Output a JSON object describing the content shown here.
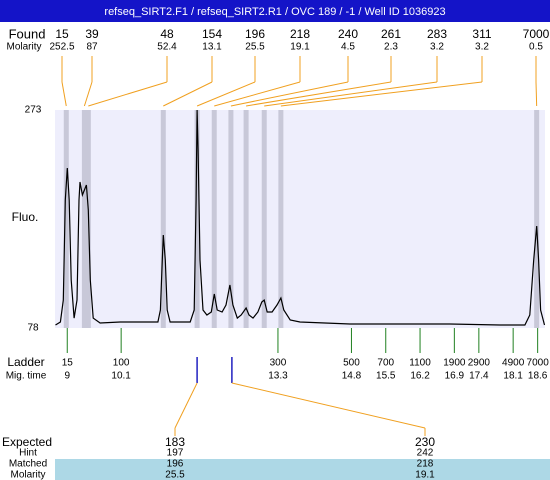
{
  "chart_data": {
    "type": "electropherogram",
    "title": "refseq_SIRT2.F1 / refseq_SIRT2.R1 / OVC 189 / -1 / Well ID 1036923",
    "y_label": "Fluo.",
    "ylim": [
      78,
      273
    ],
    "yticks": [
      78,
      273
    ],
    "xlim": [
      8.75,
      18.75
    ],
    "trace": {
      "color": "#000000",
      "x": [
        8.76,
        8.86,
        8.92,
        8.96,
        9.0,
        9.04,
        9.08,
        9.14,
        9.2,
        9.24,
        9.26,
        9.31,
        9.35,
        9.39,
        9.43,
        9.47,
        9.53,
        9.67,
        10.08,
        10.49,
        10.85,
        10.9,
        10.94,
        10.96,
        11.0,
        11.04,
        11.1,
        11.51,
        11.59,
        11.63,
        11.65,
        11.67,
        11.71,
        11.77,
        11.85,
        11.94,
        12.0,
        12.06,
        12.16,
        12.24,
        12.32,
        12.38,
        12.47,
        12.55,
        12.65,
        12.71,
        12.79,
        12.89,
        12.97,
        13.02,
        13.08,
        13.18,
        13.28,
        13.36,
        13.42,
        13.55,
        13.75,
        14.77,
        15.79,
        16.81,
        17.83,
        18.34,
        18.44,
        18.52,
        18.58,
        18.62,
        18.66,
        18.74
      ],
      "values": [
        80.7,
        83.4,
        103.0,
        192.5,
        221.1,
        192.5,
        120.9,
        86.9,
        103.0,
        192.5,
        208.6,
        197.0,
        201.4,
        205.9,
        183.6,
        120.9,
        86.9,
        82.5,
        83.4,
        83.4,
        83.4,
        94.1,
        138.8,
        161.2,
        138.8,
        94.1,
        83.4,
        83.4,
        94.1,
        192.5,
        273,
        237.2,
        138.8,
        94.1,
        89.6,
        92.3,
        108.4,
        94.1,
        92.3,
        98.6,
        116.5,
        98.6,
        86.9,
        89.6,
        95.9,
        89.6,
        86.9,
        92.3,
        101.3,
        103.0,
        92.3,
        92.3,
        98.6,
        104.8,
        94.1,
        85.2,
        83.4,
        81.6,
        81.6,
        81.6,
        80.7,
        80.7,
        89.6,
        138.8,
        169.2,
        138.8,
        94.1,
        80.7
      ]
    },
    "found": {
      "label": "Found",
      "molarity_label": "Molarity",
      "line_color": "#f0a020",
      "band_color": "#c8c8d8",
      "sizes": [
        15,
        39,
        48,
        154,
        196,
        218,
        240,
        261,
        283,
        311,
        7000
      ],
      "molarities": [
        252.5,
        87,
        52.4,
        13.1,
        25.5,
        19.1,
        4.5,
        2.3,
        3.2,
        3.2,
        0.5
      ],
      "x": [
        8.98,
        9.35,
        9.43,
        10.96,
        11.65,
        12.0,
        12.34,
        12.65,
        13.02,
        13.36,
        18.58
      ]
    },
    "ladder": {
      "label": "Ladder",
      "time_label": "Mig. time",
      "color": "#208020",
      "sizes": [
        15,
        100,
        300,
        500,
        700,
        1100,
        1900,
        2900,
        4900,
        7000
      ],
      "times": [
        9,
        10.1,
        13.3,
        14.8,
        15.5,
        16.2,
        16.9,
        17.4,
        18.1,
        18.6
      ]
    },
    "expected": {
      "labels": [
        "Expected",
        "Hint",
        "Matched",
        "Molarity"
      ],
      "x": [
        11.65,
        12.36
      ],
      "mark_color": "#2020c0",
      "expected": [
        183,
        230
      ],
      "hint": [
        197,
        242
      ],
      "matched": [
        196,
        218
      ],
      "molarity": [
        25.5,
        19.1
      ]
    }
  }
}
